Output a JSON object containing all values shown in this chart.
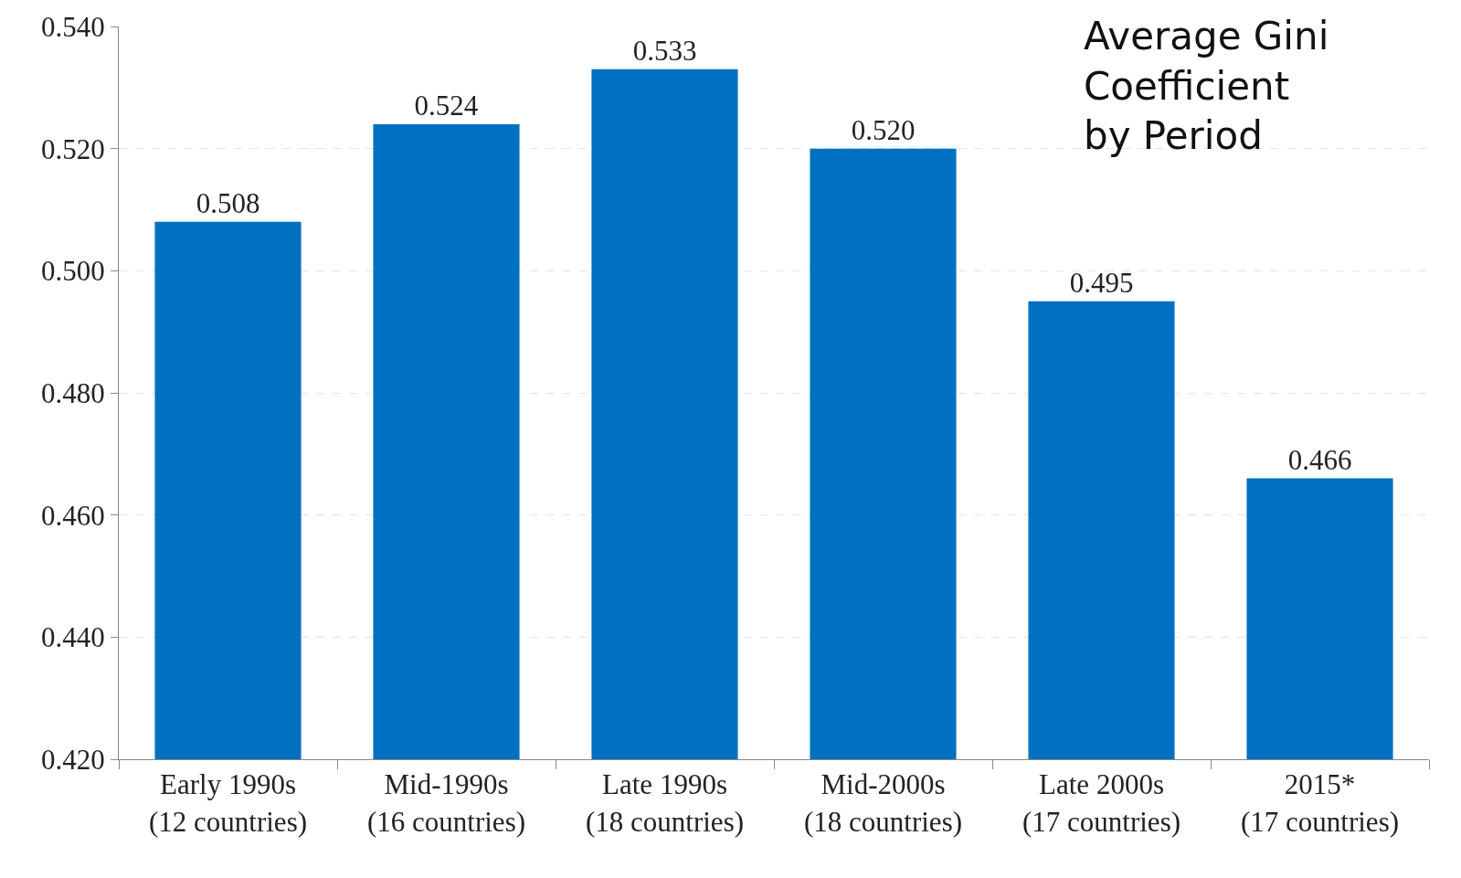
{
  "chart_data": {
    "type": "bar",
    "title": "Average Gini\nCoefficient\nby Period",
    "categories": [
      "Early 1990s\n(12 countries)",
      "Mid-1990s\n(16 countries)",
      "Late 1990s\n(18 countries)",
      "Mid-2000s\n(18 countries)",
      "Late 2000s\n(17 countries)",
      "2015*\n(17 countries)"
    ],
    "values": [
      0.508,
      0.524,
      0.533,
      0.52,
      0.495,
      0.466
    ],
    "color": "#0070c0",
    "ylim": [
      0.42,
      0.54
    ],
    "yticks": [
      {
        "value": 0.42,
        "label": "0.420"
      },
      {
        "value": 0.44,
        "label": "0.440"
      },
      {
        "value": 0.46,
        "label": "0.460"
      },
      {
        "value": 0.48,
        "label": "0.480"
      },
      {
        "value": 0.5,
        "label": "0.500"
      },
      {
        "value": 0.52,
        "label": "0.520"
      },
      {
        "value": 0.54,
        "label": "0.540"
      }
    ],
    "value_labels": [
      "0.508",
      "0.524",
      "0.533",
      "0.520",
      "0.495",
      "0.466"
    ],
    "grid": "y",
    "legend": false
  }
}
